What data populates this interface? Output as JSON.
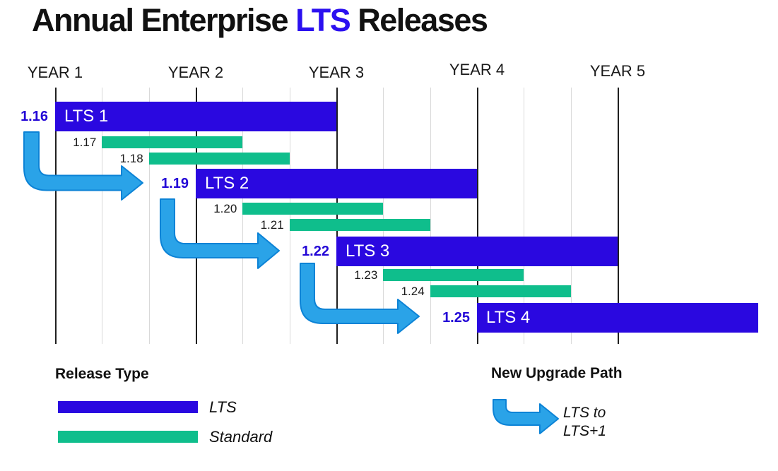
{
  "title": {
    "pre": "Annual Enterprise ",
    "highlight": "LTS",
    "post": " Releases"
  },
  "colors": {
    "lts_blue": "#2A08E0",
    "title_blue": "#2B10F0",
    "standard_green": "#0FBE8C",
    "arrow_fill": "#2AA3E8",
    "arrow_stroke": "#0C83D6",
    "grid_minor": "#D9D9D9",
    "grid_major": "#1F1F1F",
    "text_dark": "#1A1A1A",
    "version_blue": "#2306D6"
  },
  "chart_data": {
    "type": "bar",
    "subtype": "gantt-timeline",
    "title": "Annual Enterprise LTS Releases",
    "xlabel": "",
    "ylabel": "",
    "x_unit": "years",
    "x_range_years": [
      0,
      5
    ],
    "gridlines": {
      "major_every_years": 1,
      "minor_every_years": 0.3333,
      "major_count": 5
    },
    "year_labels": [
      "YEAR 1",
      "YEAR 2",
      "YEAR 3",
      "YEAR 4",
      "YEAR 5"
    ],
    "bars": [
      {
        "version": "1.16",
        "label": "LTS 1",
        "type": "lts",
        "start_year": 0,
        "duration_years": 2
      },
      {
        "version": "1.17",
        "label": "",
        "type": "standard",
        "start_year": 0.3333,
        "duration_years": 1
      },
      {
        "version": "1.18",
        "label": "",
        "type": "standard",
        "start_year": 0.6667,
        "duration_years": 1
      },
      {
        "version": "1.19",
        "label": "LTS 2",
        "type": "lts",
        "start_year": 1,
        "duration_years": 2
      },
      {
        "version": "1.20",
        "label": "",
        "type": "standard",
        "start_year": 1.3333,
        "duration_years": 1
      },
      {
        "version": "1.21",
        "label": "",
        "type": "standard",
        "start_year": 1.6667,
        "duration_years": 1
      },
      {
        "version": "1.22",
        "label": "LTS 3",
        "type": "lts",
        "start_year": 2,
        "duration_years": 2
      },
      {
        "version": "1.23",
        "label": "",
        "type": "standard",
        "start_year": 2.3333,
        "duration_years": 1
      },
      {
        "version": "1.24",
        "label": "",
        "type": "standard",
        "start_year": 2.6667,
        "duration_years": 1
      },
      {
        "version": "1.25",
        "label": "LTS 4",
        "type": "lts",
        "start_year": 3,
        "duration_years": 2
      }
    ],
    "upgrade_arrows": [
      {
        "from": "1.16",
        "to": "1.19"
      },
      {
        "from": "1.19",
        "to": "1.22"
      },
      {
        "from": "1.22",
        "to": "1.25"
      }
    ],
    "legend_position": "bottom"
  },
  "legend": {
    "release_type": {
      "title": "Release Type",
      "items": [
        {
          "label": "LTS",
          "color_key": "lts_blue"
        },
        {
          "label": "Standard",
          "color_key": "standard_green"
        }
      ]
    },
    "upgrade_path": {
      "title": "New Upgrade Path",
      "label_line1": "LTS to",
      "label_line2": "LTS+1"
    }
  }
}
